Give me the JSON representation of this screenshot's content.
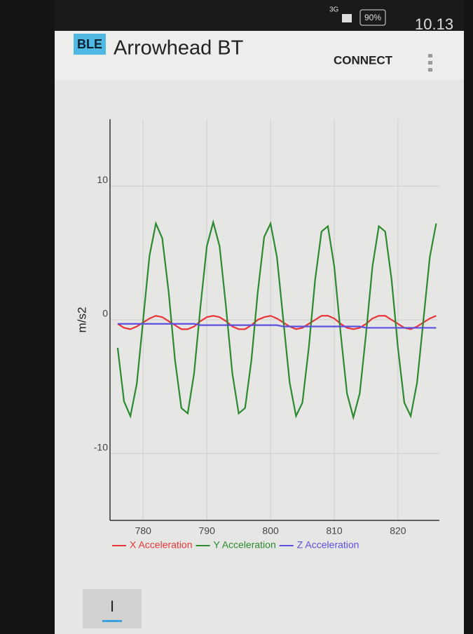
{
  "status_bar": {
    "network": "3G",
    "battery": "90%",
    "time": "10.13"
  },
  "app_bar": {
    "icon": "BLE",
    "title": "Arrowhead BT",
    "action": "CONNECT"
  },
  "chart_data": {
    "type": "line",
    "ylabel": "m/s2",
    "x": [
      776,
      777,
      778,
      779,
      780,
      781,
      782,
      783,
      784,
      785,
      786,
      787,
      788,
      789,
      790,
      791,
      792,
      793,
      794,
      795,
      796,
      797,
      798,
      799,
      800,
      801,
      802,
      803,
      804,
      805,
      806,
      807,
      808,
      809,
      810,
      811,
      812,
      813,
      814,
      815,
      816,
      817,
      818,
      819,
      820,
      821,
      822,
      823,
      824,
      825,
      826
    ],
    "series": [
      {
        "name": "X Acceleration",
        "color": "#e8353a",
        "values": [
          -0.3,
          -0.6,
          -0.7,
          -0.5,
          -0.2,
          0.1,
          0.3,
          0.2,
          -0.1,
          -0.4,
          -0.7,
          -0.7,
          -0.5,
          -0.1,
          0.2,
          0.3,
          0.2,
          -0.1,
          -0.5,
          -0.7,
          -0.7,
          -0.4,
          0,
          0.2,
          0.3,
          0.1,
          -0.2,
          -0.5,
          -0.7,
          -0.6,
          -0.3,
          0,
          0.3,
          0.3,
          0.1,
          -0.3,
          -0.6,
          -0.7,
          -0.6,
          -0.3,
          0.1,
          0.3,
          0.3,
          0,
          -0.3,
          -0.6,
          -0.7,
          -0.5,
          -0.2,
          0.1,
          0.3
        ]
      },
      {
        "name": "Y Acceleration",
        "color": "#2a8a2e",
        "values": [
          -2.1,
          -6.1,
          -7.2,
          -4.8,
          0,
          4.8,
          7.2,
          6.1,
          2.1,
          -3.0,
          -6.6,
          -7.0,
          -4.0,
          1.0,
          5.5,
          7.3,
          5.5,
          1.0,
          -4.0,
          -7.0,
          -6.6,
          -3.0,
          2.1,
          6.2,
          7.2,
          4.7,
          0,
          -4.7,
          -7.2,
          -6.2,
          -2.1,
          3.0,
          6.6,
          7.0,
          4.0,
          -1.0,
          -5.5,
          -7.3,
          -5.5,
          -1.0,
          4.0,
          7.0,
          6.6,
          3.0,
          -2.1,
          -6.2,
          -7.2,
          -4.7,
          0,
          4.7,
          7.2
        ]
      },
      {
        "name": "Z Acceleration",
        "color": "#5b4fe0",
        "values": [
          -0.3,
          -0.3,
          -0.3,
          -0.3,
          -0.3,
          -0.3,
          -0.3,
          -0.3,
          -0.3,
          -0.3,
          -0.3,
          -0.3,
          -0.3,
          -0.4,
          -0.4,
          -0.4,
          -0.4,
          -0.4,
          -0.4,
          -0.4,
          -0.4,
          -0.4,
          -0.4,
          -0.4,
          -0.4,
          -0.4,
          -0.5,
          -0.5,
          -0.5,
          -0.5,
          -0.5,
          -0.5,
          -0.5,
          -0.5,
          -0.5,
          -0.5,
          -0.5,
          -0.5,
          -0.5,
          -0.6,
          -0.6,
          -0.6,
          -0.6,
          -0.6,
          -0.6,
          -0.6,
          -0.6,
          -0.6,
          -0.6,
          -0.6,
          -0.6
        ]
      }
    ],
    "xlim": [
      774.8,
      826.5
    ],
    "ylim": [
      -15,
      15
    ],
    "xticks": [
      780,
      790,
      800,
      810,
      820
    ],
    "yticks": [
      -10,
      0,
      10
    ],
    "grid": true
  },
  "bottom_button": {
    "label": "I"
  }
}
